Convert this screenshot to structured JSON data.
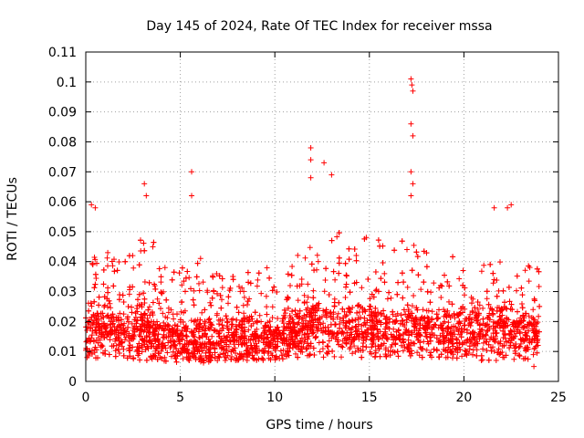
{
  "chart_data": {
    "type": "scatter",
    "title": "Day 145 of 2024, Rate Of TEC Index for receiver mssa",
    "xlabel": "GPS time / hours",
    "ylabel": "ROTI / TECUs",
    "xlim": [
      0,
      25
    ],
    "ylim": [
      0,
      0.11
    ],
    "x_ticks": [
      0,
      5,
      10,
      15,
      20,
      25
    ],
    "x_tick_labels": [
      "0",
      "5",
      "10",
      "15",
      "20",
      "25"
    ],
    "y_ticks": [
      0,
      0.01,
      0.02,
      0.03,
      0.04,
      0.05,
      0.06,
      0.07,
      0.08,
      0.09,
      0.1,
      0.11
    ],
    "y_tick_labels": [
      "0",
      "0.01",
      "0.02",
      "0.03",
      "0.04",
      "0.05",
      "0.06",
      "0.07",
      "0.08",
      "0.09",
      "0.1",
      "0.11"
    ],
    "grid": true,
    "marker": "+",
    "series_color": "#ff0000",
    "notable_points": [
      {
        "x": 0.3,
        "y": 0.059
      },
      {
        "x": 0.5,
        "y": 0.058
      },
      {
        "x": 3.1,
        "y": 0.066
      },
      {
        "x": 3.2,
        "y": 0.062
      },
      {
        "x": 5.6,
        "y": 0.07
      },
      {
        "x": 5.6,
        "y": 0.062
      },
      {
        "x": 11.9,
        "y": 0.078
      },
      {
        "x": 11.9,
        "y": 0.074
      },
      {
        "x": 11.9,
        "y": 0.068
      },
      {
        "x": 12.6,
        "y": 0.073
      },
      {
        "x": 13.0,
        "y": 0.069
      },
      {
        "x": 17.2,
        "y": 0.101
      },
      {
        "x": 17.25,
        "y": 0.099
      },
      {
        "x": 17.3,
        "y": 0.097
      },
      {
        "x": 17.2,
        "y": 0.086
      },
      {
        "x": 17.3,
        "y": 0.082
      },
      {
        "x": 17.2,
        "y": 0.07
      },
      {
        "x": 17.3,
        "y": 0.066
      },
      {
        "x": 17.2,
        "y": 0.062
      },
      {
        "x": 21.6,
        "y": 0.058
      },
      {
        "x": 22.3,
        "y": 0.058
      },
      {
        "x": 22.5,
        "y": 0.059
      },
      {
        "x": 23.7,
        "y": 0.005
      }
    ],
    "bulk_profile": {
      "x_range": [
        0,
        24
      ],
      "hours": [
        0,
        1,
        2,
        3,
        4,
        5,
        6,
        7,
        8,
        9,
        10,
        11,
        12,
        13,
        14,
        15,
        16,
        17,
        18,
        19,
        20,
        21,
        22,
        23,
        24
      ],
      "typical_min": [
        0.007,
        0.008,
        0.008,
        0.007,
        0.007,
        0.006,
        0.006,
        0.007,
        0.007,
        0.007,
        0.007,
        0.008,
        0.008,
        0.008,
        0.008,
        0.008,
        0.008,
        0.008,
        0.008,
        0.008,
        0.007,
        0.007,
        0.007,
        0.007,
        0.008
      ],
      "typical_max": [
        0.04,
        0.044,
        0.04,
        0.048,
        0.046,
        0.04,
        0.042,
        0.036,
        0.036,
        0.038,
        0.04,
        0.044,
        0.05,
        0.052,
        0.048,
        0.05,
        0.046,
        0.048,
        0.044,
        0.04,
        0.046,
        0.048,
        0.044,
        0.04,
        0.04
      ],
      "typical_center": [
        0.016,
        0.018,
        0.016,
        0.017,
        0.016,
        0.014,
        0.014,
        0.014,
        0.014,
        0.015,
        0.015,
        0.017,
        0.018,
        0.019,
        0.018,
        0.018,
        0.017,
        0.017,
        0.017,
        0.016,
        0.017,
        0.018,
        0.018,
        0.017,
        0.016
      ]
    }
  }
}
